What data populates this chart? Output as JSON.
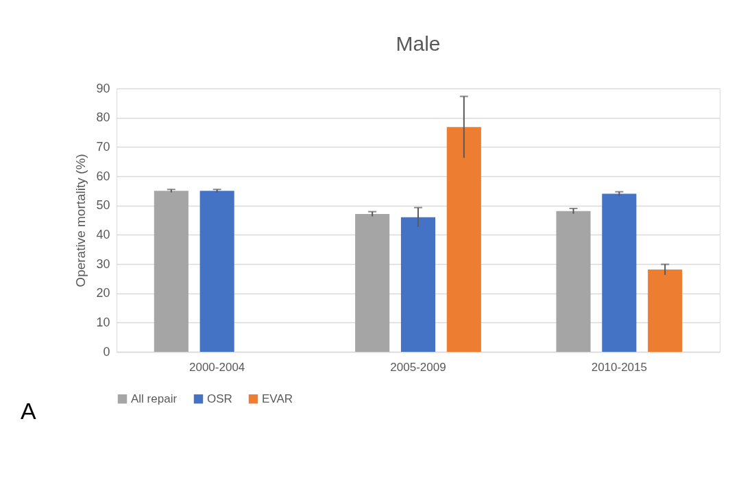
{
  "chart_data": {
    "type": "bar",
    "title": "Male",
    "ylabel": "Operative mortality (%)",
    "categories": [
      "2000-2004",
      "2005-2009",
      "2010-2015"
    ],
    "series": [
      {
        "name": "All repair",
        "color": "#a5a5a5",
        "values": [
          55.0,
          47.1,
          48.1
        ],
        "errors": [
          0.5,
          0.8,
          0.9
        ]
      },
      {
        "name": "OSR",
        "color": "#4472c4",
        "values": [
          55.0,
          46.0,
          54.0
        ],
        "errors": [
          0.5,
          3.3,
          0.7
        ]
      },
      {
        "name": "EVAR",
        "color": "#ed7d31",
        "values": [
          null,
          76.8,
          28.1
        ],
        "errors": [
          null,
          10.5,
          1.8
        ]
      }
    ],
    "ylim": [
      0,
      90
    ],
    "yticks": [
      0,
      10,
      20,
      30,
      40,
      50,
      60,
      70,
      80,
      90
    ],
    "grid": "y",
    "legend": "bottom",
    "annotations": [
      "A"
    ]
  }
}
